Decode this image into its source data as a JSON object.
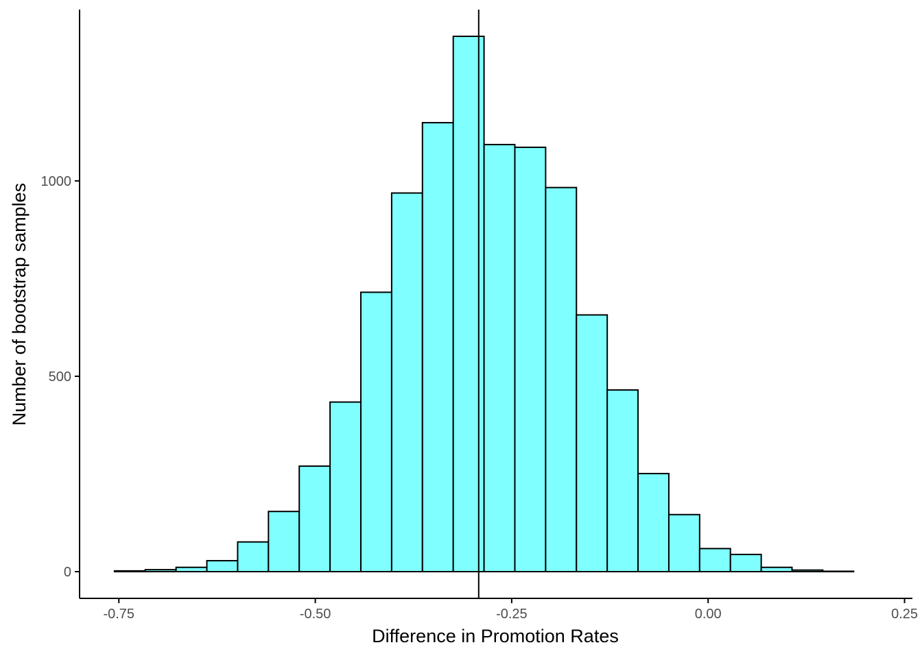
{
  "chart_data": {
    "type": "bar",
    "xlabel": "Difference in Promotion Rates",
    "ylabel": "Number of bootstrap samples",
    "bin_width": 0.0392,
    "bin_left_edges": [
      -0.7556,
      -0.7164,
      -0.6772,
      -0.638,
      -0.5988,
      -0.5596,
      -0.5204,
      -0.4812,
      -0.442,
      -0.4028,
      -0.3636,
      -0.3244,
      -0.2852,
      -0.246,
      -0.2068,
      -0.1676,
      -0.1284,
      -0.0892,
      -0.05,
      -0.0108,
      0.0284,
      0.0676,
      0.1068,
      0.146,
      0.1852
    ],
    "values": [
      2,
      5,
      11,
      28,
      76,
      154,
      270,
      434,
      715,
      969,
      1149,
      1370,
      1093,
      1086,
      983,
      657,
      465,
      251,
      146,
      59,
      44,
      11,
      4,
      1,
      0
    ],
    "xlim": [
      -0.8,
      0.26
    ],
    "ylim": [
      0,
      1370
    ],
    "xticks": [
      -0.75,
      -0.5,
      -0.25,
      0,
      0.25
    ],
    "xtick_labels": [
      "-0.75",
      "-0.50",
      "-0.25",
      "0.00",
      "0.25"
    ],
    "yticks": [
      0,
      500,
      1000
    ],
    "ytick_labels": [
      "0",
      "500",
      "1000"
    ],
    "vline_x": -0.292,
    "colors": {
      "bar_fill": "#7fffff",
      "bar_stroke": "#000000"
    }
  }
}
